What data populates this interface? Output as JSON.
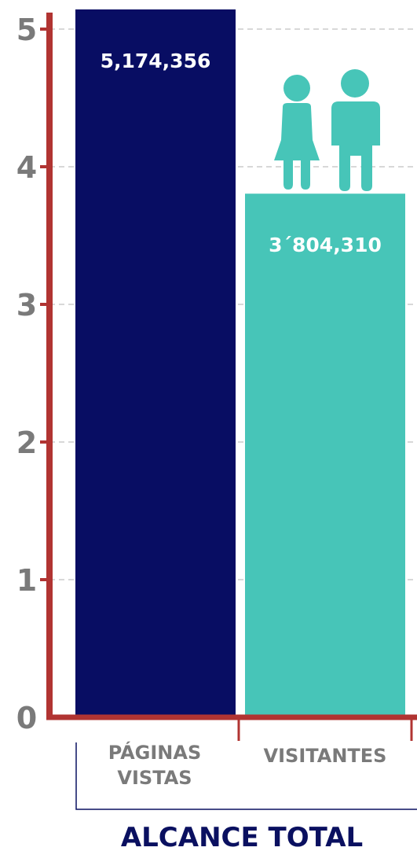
{
  "chart_data": {
    "type": "bar",
    "categories": [
      [
        "PÁGINAS",
        "VISTAS"
      ],
      [
        "VISITANTES"
      ]
    ],
    "values": [
      5.174356,
      3.80431
    ],
    "data_labels": [
      "5,174,356",
      "3´804,310"
    ],
    "ylim": [
      0,
      5
    ],
    "yticks": [
      "0",
      "1",
      "2",
      "3",
      "4",
      "5"
    ],
    "grid": true,
    "colors": {
      "bars": [
        "#080d63",
        "#47c5b8"
      ],
      "axis": "#b13432",
      "grid": "#cccccc",
      "icons": "#47c5b8"
    },
    "xlabel": "ALCANCE TOTAL",
    "icon_above_bar": {
      "bar_index": 1,
      "icons": [
        "female-person-icon",
        "male-person-icon"
      ]
    }
  }
}
